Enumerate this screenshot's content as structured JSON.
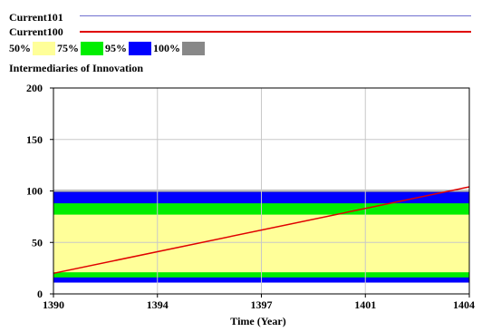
{
  "legend": {
    "series": [
      {
        "name": "Current101",
        "color": "#7070d0"
      },
      {
        "name": "Current100",
        "color": "#e00000"
      }
    ],
    "bands": [
      {
        "label": "50%",
        "color": "#ffff99"
      },
      {
        "label": "75%",
        "color": "#00ee00"
      },
      {
        "label": "95%",
        "color": "#0000ff"
      },
      {
        "label": "100%",
        "color": "#888888"
      }
    ]
  },
  "chart_data": {
    "type": "area",
    "title": "Intermediaries of Innovation",
    "xlabel": "Time (Year)",
    "ylabel": "",
    "xlim": [
      1390,
      1404
    ],
    "ylim": [
      0,
      200
    ],
    "x_ticks": [
      "1390",
      "1394",
      "1397",
      "1401",
      "1404"
    ],
    "x_tick_values": [
      1390,
      1393.5,
      1397,
      1400.5,
      1404
    ],
    "y_ticks": [
      "0",
      "50",
      "100",
      "150",
      "200"
    ],
    "y_tick_values": [
      0,
      50,
      100,
      150,
      200
    ],
    "grid": true,
    "bands": [
      {
        "name": "100%",
        "color": "#888888",
        "y0": 11,
        "y1": 101
      },
      {
        "name": "95%",
        "color": "#0000ff",
        "y0": 11,
        "y1": 99
      },
      {
        "name": "75%",
        "color": "#00ee00",
        "y0": 16,
        "y1": 88
      },
      {
        "name": "50%",
        "color": "#ffff99",
        "y0": 21,
        "y1": 77
      }
    ],
    "series": [
      {
        "name": "Current100",
        "color": "#e00000",
        "x": [
          1390,
          1404
        ],
        "y": [
          20,
          104
        ]
      }
    ]
  }
}
